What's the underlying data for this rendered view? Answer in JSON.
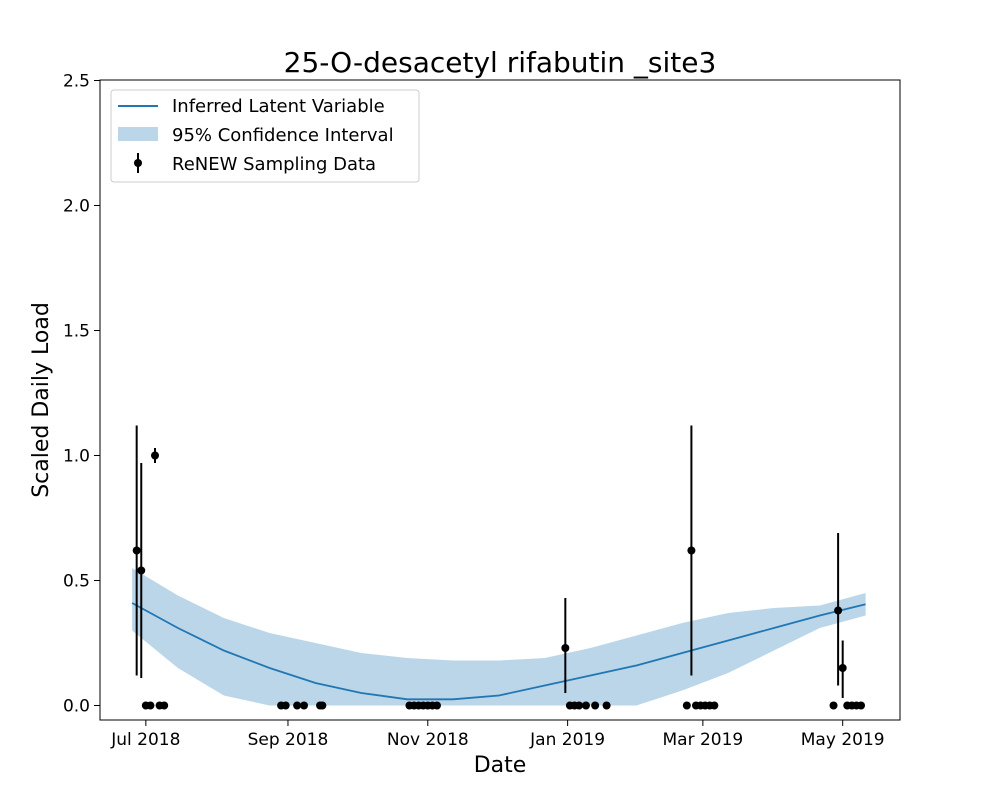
{
  "chart_data": {
    "type": "line",
    "title": "25-O-desacetyl rifabutin _site3",
    "xlabel": "Date",
    "ylabel": "Scaled Daily Load",
    "ylim": [
      0,
      2.5
    ],
    "xlim": [
      "2018-06-11",
      "2019-05-26"
    ],
    "x_ticks": [
      "2018-07-01",
      "2018-09-01",
      "2018-11-01",
      "2019-01-01",
      "2019-03-01",
      "2019-05-01"
    ],
    "x_tick_labels": [
      "Jul 2018",
      "Sep 2018",
      "Nov 2018",
      "Jan 2019",
      "Mar 2019",
      "May 2019"
    ],
    "y_ticks": [
      0.0,
      0.5,
      1.0,
      1.5,
      2.0,
      2.5
    ],
    "y_tick_labels": [
      "0.0",
      "0.5",
      "1.0",
      "1.5",
      "2.0",
      "2.5"
    ],
    "grid": false,
    "legend_position": "top-left",
    "series": [
      {
        "name": "Inferred Latent Variable",
        "kind": "line",
        "color": "#1f77b4",
        "x": [
          "2018-06-25",
          "2018-07-15",
          "2018-08-04",
          "2018-08-24",
          "2018-09-13",
          "2018-10-03",
          "2018-10-23",
          "2018-11-12",
          "2018-12-02",
          "2018-12-22",
          "2019-01-11",
          "2019-01-31",
          "2019-02-20",
          "2019-03-12",
          "2019-04-01",
          "2019-04-21",
          "2019-05-11"
        ],
        "y": [
          0.41,
          0.31,
          0.22,
          0.15,
          0.09,
          0.05,
          0.025,
          0.025,
          0.04,
          0.08,
          0.12,
          0.16,
          0.21,
          0.26,
          0.31,
          0.36,
          0.405
        ]
      },
      {
        "name": "95% Confidence Interval",
        "kind": "band",
        "color": "#1f77b4",
        "x": [
          "2018-06-25",
          "2018-07-15",
          "2018-08-04",
          "2018-08-24",
          "2018-09-13",
          "2018-10-03",
          "2018-10-23",
          "2018-11-12",
          "2018-12-02",
          "2018-12-22",
          "2019-01-11",
          "2019-01-31",
          "2019-02-20",
          "2019-03-12",
          "2019-04-01",
          "2019-04-21",
          "2019-05-11"
        ],
        "lower": [
          0.3,
          0.15,
          0.04,
          0.0,
          0.0,
          0.0,
          0.0,
          0.0,
          0.0,
          0.0,
          0.0,
          0.0,
          0.06,
          0.13,
          0.22,
          0.31,
          0.36
        ],
        "upper": [
          0.55,
          0.44,
          0.35,
          0.29,
          0.25,
          0.21,
          0.19,
          0.18,
          0.18,
          0.19,
          0.23,
          0.28,
          0.33,
          0.37,
          0.39,
          0.4,
          0.45
        ]
      },
      {
        "name": "ReNEW Sampling Data",
        "kind": "errorbar",
        "color": "#000000",
        "points": [
          {
            "x": "2018-06-27",
            "y": 0.62,
            "low": 0.12,
            "high": 1.12
          },
          {
            "x": "2018-06-29",
            "y": 0.54,
            "low": 0.11,
            "high": 0.97
          },
          {
            "x": "2018-07-01",
            "y": 0.0
          },
          {
            "x": "2018-07-03",
            "y": 0.0
          },
          {
            "x": "2018-07-05",
            "y": 1.0,
            "low": 0.97,
            "high": 1.03
          },
          {
            "x": "2018-07-07",
            "y": 0.0
          },
          {
            "x": "2018-07-09",
            "y": 0.0
          },
          {
            "x": "2018-08-29",
            "y": 0.0
          },
          {
            "x": "2018-08-31",
            "y": 0.0
          },
          {
            "x": "2018-09-05",
            "y": 0.0
          },
          {
            "x": "2018-09-08",
            "y": 0.0
          },
          {
            "x": "2018-09-15",
            "y": 0.0
          },
          {
            "x": "2018-09-16",
            "y": 0.0
          },
          {
            "x": "2018-10-24",
            "y": 0.0
          },
          {
            "x": "2018-10-26",
            "y": 0.0
          },
          {
            "x": "2018-10-28",
            "y": 0.0
          },
          {
            "x": "2018-10-30",
            "y": 0.0
          },
          {
            "x": "2018-11-01",
            "y": 0.0
          },
          {
            "x": "2018-11-03",
            "y": 0.0
          },
          {
            "x": "2018-11-05",
            "y": 0.0
          },
          {
            "x": "2018-12-31",
            "y": 0.23,
            "low": 0.05,
            "high": 0.43
          },
          {
            "x": "2019-01-02",
            "y": 0.0
          },
          {
            "x": "2019-01-04",
            "y": 0.0
          },
          {
            "x": "2019-01-06",
            "y": 0.0
          },
          {
            "x": "2019-01-09",
            "y": 0.0
          },
          {
            "x": "2019-01-13",
            "y": 0.0
          },
          {
            "x": "2019-01-18",
            "y": 0.0
          },
          {
            "x": "2019-02-22",
            "y": 0.0
          },
          {
            "x": "2019-02-24",
            "y": 0.62,
            "low": 0.12,
            "high": 1.12
          },
          {
            "x": "2019-02-26",
            "y": 0.0
          },
          {
            "x": "2019-02-28",
            "y": 0.0
          },
          {
            "x": "2019-03-02",
            "y": 0.0
          },
          {
            "x": "2019-03-04",
            "y": 0.0
          },
          {
            "x": "2019-03-06",
            "y": 0.0
          },
          {
            "x": "2019-04-27",
            "y": 0.0
          },
          {
            "x": "2019-04-29",
            "y": 0.38,
            "low": 0.08,
            "high": 0.69
          },
          {
            "x": "2019-05-01",
            "y": 0.15,
            "low": 0.03,
            "high": 0.26
          },
          {
            "x": "2019-05-03",
            "y": 0.0
          },
          {
            "x": "2019-05-05",
            "y": 0.0
          },
          {
            "x": "2019-05-07",
            "y": 0.0
          },
          {
            "x": "2019-05-09",
            "y": 0.0
          }
        ]
      }
    ]
  }
}
